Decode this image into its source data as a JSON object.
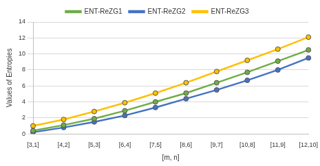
{
  "chart_data": {
    "type": "line",
    "x_label": "[m, n]",
    "y_label": "Values of Entropies",
    "categories": [
      "[3,1]",
      "[4,2]",
      "[5,3]",
      "[6,4]",
      "[7,5]",
      "[8,6]",
      "[9,7]",
      "[10,8]",
      "[11,9]",
      "[12,10]"
    ],
    "series": [
      {
        "name": "ENT-ReZG1",
        "color": "#70ad47",
        "marker": "circle",
        "values": [
          0.4,
          1.1,
          1.9,
          2.9,
          4.0,
          5.1,
          6.4,
          7.7,
          9.1,
          10.5
        ]
      },
      {
        "name": "ENT-ReZG2",
        "color": "#4472c4",
        "marker": "circle",
        "values": [
          0.2,
          0.8,
          1.5,
          2.3,
          3.3,
          4.4,
          5.5,
          6.7,
          8.0,
          9.5
        ]
      },
      {
        "name": "ENT-ReZG3",
        "color": "#ffc000",
        "marker": "circle",
        "values": [
          1.0,
          1.8,
          2.8,
          3.9,
          5.1,
          6.4,
          7.8,
          9.2,
          10.6,
          12.1
        ]
      }
    ],
    "ylim": [
      0,
      14
    ],
    "yticks": [
      0,
      2,
      4,
      6,
      8,
      10,
      12,
      14
    ],
    "grid": true,
    "legend": "top"
  }
}
